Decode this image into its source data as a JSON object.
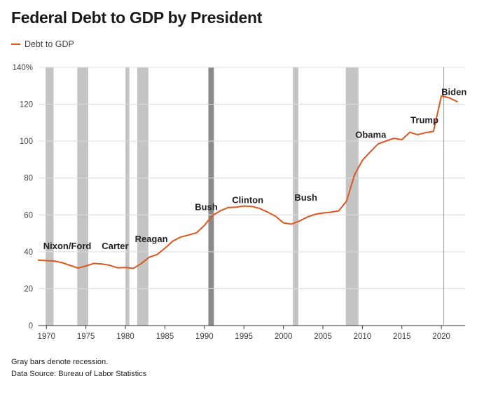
{
  "title": "Federal Debt to GDP by President",
  "legend": {
    "label": "Debt to GDP",
    "color": "#e0561b"
  },
  "notes": {
    "recession": "Gray bars denote recession.",
    "source": "Data Source: Bureau of Labor Statistics"
  },
  "chart_data": {
    "type": "line",
    "title": "Federal Debt to GDP by President",
    "xlabel": "",
    "ylabel": "",
    "xlim": [
      1969,
      2023
    ],
    "ylim": [
      0,
      140
    ],
    "y_tick_values": [
      0,
      20,
      40,
      60,
      80,
      100,
      120,
      140
    ],
    "y_tick_labels": [
      "0",
      "20",
      "40",
      "60",
      "80",
      "100",
      "120",
      "140%"
    ],
    "x_tick_values": [
      1970,
      1975,
      1980,
      1985,
      1990,
      1995,
      2000,
      2005,
      2010,
      2015,
      2020
    ],
    "x_tick_labels": [
      "1970",
      "1975",
      "1980",
      "1985",
      "1990",
      "1995",
      "2000",
      "2005",
      "2010",
      "2015",
      "2020"
    ],
    "grid": true,
    "legend_position": "top-left",
    "series": [
      {
        "name": "Debt to GDP",
        "color": "#e0561b",
        "x": [
          1969,
          1970,
          1971,
          1972,
          1973,
          1974,
          1975,
          1976,
          1977,
          1978,
          1979,
          1980,
          1981,
          1982,
          1983,
          1984,
          1985,
          1986,
          1987,
          1988,
          1989,
          1990,
          1991,
          1992,
          1993,
          1994,
          1995,
          1996,
          1997,
          1998,
          1999,
          2000,
          2001,
          2002,
          2003,
          2004,
          2005,
          2006,
          2007,
          2008,
          2009,
          2010,
          2011,
          2012,
          2013,
          2014,
          2015,
          2016,
          2017,
          2018,
          2019,
          2020,
          2021,
          2022
        ],
        "values": [
          35.5,
          35.2,
          35.0,
          34.1,
          32.6,
          31.2,
          32.3,
          33.7,
          33.4,
          32.7,
          31.3,
          31.5,
          31.0,
          33.6,
          37.0,
          38.5,
          41.9,
          45.8,
          48.0,
          49.1,
          50.3,
          54.3,
          59.6,
          62.2,
          64.0,
          64.2,
          64.8,
          64.6,
          63.5,
          61.5,
          59.3,
          55.7,
          55.0,
          56.6,
          58.8,
          60.3,
          61.0,
          61.5,
          62.2,
          67.5,
          81.7,
          89.6,
          94.2,
          98.5,
          100.1,
          101.5,
          100.8,
          104.8,
          103.5,
          104.6,
          105.3,
          124.5,
          123.5,
          121.4
        ]
      }
    ],
    "recessions": [
      [
        1969.9,
        1970.9
      ],
      [
        1973.9,
        1975.3
      ],
      [
        1980.0,
        1980.5
      ],
      [
        1981.5,
        1982.9
      ],
      [
        1990.5,
        1991.2
      ],
      [
        2001.2,
        2001.9
      ],
      [
        2007.9,
        2009.5
      ]
    ],
    "annotations": [
      {
        "text": "Nixon/Ford",
        "x": 1969.6,
        "y": 41.5
      },
      {
        "text": "Carter",
        "x": 1977.0,
        "y": 41.5
      },
      {
        "text": "Reagan",
        "x": 1981.2,
        "y": 45.3
      },
      {
        "text": "Bush",
        "x": 1988.8,
        "y": 62.5
      },
      {
        "text": "Clinton",
        "x": 1993.5,
        "y": 66.3
      },
      {
        "text": "Bush",
        "x": 2001.4,
        "y": 67.8
      },
      {
        "text": "Obama",
        "x": 2009.1,
        "y": 101.7
      },
      {
        "text": "Trump",
        "x": 2016.1,
        "y": 109.7
      },
      {
        "text": "Biden",
        "x": 2020.0,
        "y": 124.9
      }
    ],
    "reference_line_x": 2020.3
  }
}
